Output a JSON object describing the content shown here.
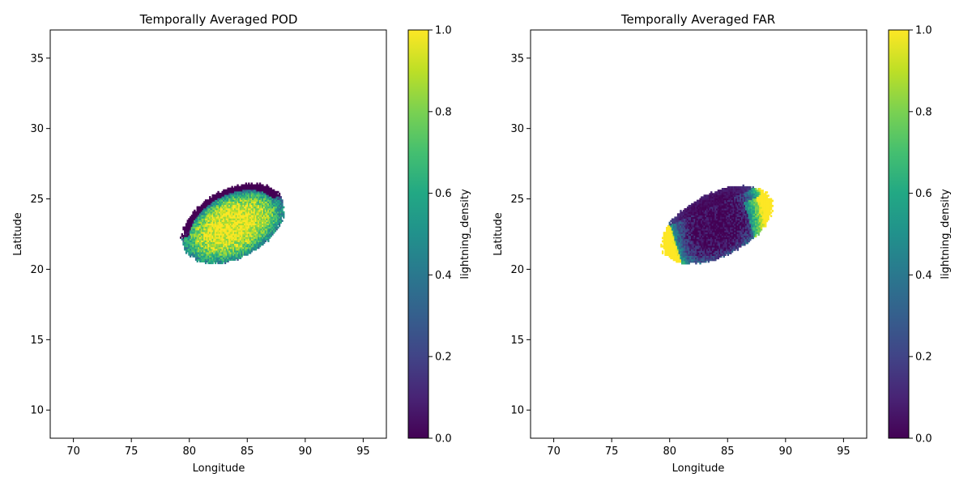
{
  "chart_data": [
    {
      "type": "heatmap",
      "title": "Temporally Averaged POD",
      "xlabel": "Longitude",
      "ylabel": "Latitude",
      "xlim": [
        68,
        97
      ],
      "ylim": [
        8,
        37
      ],
      "xticks": [
        "70",
        "75",
        "80",
        "85",
        "90",
        "95"
      ],
      "xtick_values": [
        70,
        75,
        80,
        85,
        90,
        95
      ],
      "yticks": [
        "10",
        "15",
        "20",
        "25",
        "30",
        "35"
      ],
      "ytick_values": [
        10,
        15,
        20,
        25,
        30,
        35
      ],
      "colorbar": {
        "label": "lightning_density",
        "range": [
          0.0,
          1.0
        ],
        "ticks": [
          "0.0",
          "0.2",
          "0.4",
          "0.6",
          "0.8",
          "1.0"
        ],
        "tick_values": [
          0,
          0.2,
          0.4,
          0.6,
          0.8,
          1.0
        ],
        "colormap": "viridis"
      },
      "field": {
        "shape": "ellipse",
        "center": [
          83.7,
          23.2
        ],
        "semi_axes": [
          4.6,
          2.5
        ],
        "tilt_deg": 20,
        "pattern": "high (~1.0) in the centre, falling to ~0 toward the north-east rim",
        "center_value": 1.0,
        "edge_value": 0.0
      },
      "grid": false
    },
    {
      "type": "heatmap",
      "title": "Temporally Averaged FAR",
      "xlabel": "Longitude",
      "ylabel": "Latitude",
      "xlim": [
        68,
        97
      ],
      "ylim": [
        8,
        37
      ],
      "xticks": [
        "70",
        "75",
        "80",
        "85",
        "90",
        "95"
      ],
      "xtick_values": [
        70,
        75,
        80,
        85,
        90,
        95
      ],
      "yticks": [
        "10",
        "15",
        "20",
        "25",
        "30",
        "35"
      ],
      "ytick_values": [
        10,
        15,
        20,
        25,
        30,
        35
      ],
      "colorbar": {
        "label": "lightning_density",
        "range": [
          0.0,
          1.0
        ],
        "ticks": [
          "0.0",
          "0.2",
          "0.4",
          "0.6",
          "0.8",
          "1.0"
        ],
        "tick_values": [
          0,
          0.2,
          0.4,
          0.6,
          0.8,
          1.0
        ],
        "colormap": "viridis"
      },
      "field": {
        "shape": "ellipse",
        "center": [
          84.0,
          23.1
        ],
        "semi_axes": [
          5.0,
          2.3
        ],
        "tilt_deg": 20,
        "pattern": "low (~0.0) in the centre, rising to ~1.0 at the east and west rims",
        "center_value": 0.0,
        "edge_value": 1.0
      },
      "grid": false
    }
  ]
}
